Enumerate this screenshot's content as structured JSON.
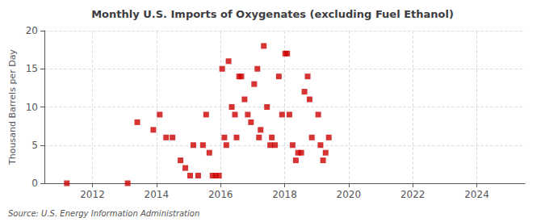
{
  "chart_data": {
    "type": "scatter",
    "title": "Monthly U.S. Imports of Oxygenates (excluding Fuel Ethanol)",
    "ylabel": "Thousand Barrels per Day",
    "source": "Source: U.S. Energy Information Administration",
    "color": "#cc0000",
    "marker": "square",
    "xlim": [
      2010.5,
      2025.5
    ],
    "ylim": [
      0,
      20
    ],
    "xticks": [
      2012,
      2014,
      2016,
      2018,
      2020,
      2022,
      2024
    ],
    "yticks": [
      0,
      5,
      10,
      15,
      20
    ],
    "grid": true,
    "x": [
      2011.2,
      2013.1,
      2013.4,
      2013.9,
      2014.1,
      2014.3,
      2014.5,
      2014.75,
      2014.9,
      2015.05,
      2015.15,
      2015.3,
      2015.45,
      2015.55,
      2015.65,
      2015.75,
      2015.85,
      2015.95,
      2016.05,
      2016.12,
      2016.18,
      2016.25,
      2016.35,
      2016.45,
      2016.5,
      2016.58,
      2016.65,
      2016.75,
      2016.85,
      2016.95,
      2017.05,
      2017.15,
      2017.2,
      2017.25,
      2017.35,
      2017.45,
      2017.55,
      2017.6,
      2017.7,
      2017.82,
      2017.92,
      2018.02,
      2018.08,
      2018.15,
      2018.25,
      2018.35,
      2018.42,
      2018.52,
      2018.62,
      2018.72,
      2018.78,
      2018.85,
      2019.05,
      2019.12,
      2019.2,
      2019.28,
      2019.38
    ],
    "values": [
      0,
      0,
      8,
      7,
      9,
      6,
      6,
      3,
      2,
      1,
      5,
      1,
      5,
      9,
      4,
      1,
      1,
      1,
      15,
      6,
      5,
      16,
      10,
      9,
      6,
      14,
      14,
      11,
      9,
      8,
      13,
      15,
      6,
      7,
      18,
      10,
      5,
      6,
      5,
      14,
      9,
      17,
      17,
      9,
      5,
      3,
      4,
      4,
      12,
      14,
      11,
      6,
      9,
      5,
      3,
      4,
      6
    ]
  }
}
